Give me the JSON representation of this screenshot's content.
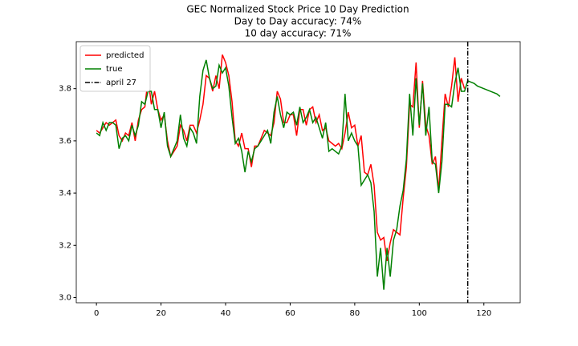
{
  "chart_data": {
    "type": "line",
    "title": "GEC Normalized Stock Price 10 Day Prediction",
    "subtitles": [
      "Day to Day accuracy: 74%",
      "10 day accuracy: 71%"
    ],
    "x": [
      0,
      1,
      2,
      3,
      4,
      5,
      6,
      7,
      8,
      9,
      10,
      11,
      12,
      13,
      14,
      15,
      16,
      17,
      18,
      19,
      20,
      21,
      22,
      23,
      24,
      25,
      26,
      27,
      28,
      29,
      30,
      31,
      32,
      33,
      34,
      35,
      36,
      37,
      38,
      39,
      40,
      41,
      42,
      43,
      44,
      45,
      46,
      47,
      48,
      49,
      50,
      51,
      52,
      53,
      54,
      55,
      56,
      57,
      58,
      59,
      60,
      61,
      62,
      63,
      64,
      65,
      66,
      67,
      68,
      69,
      70,
      71,
      72,
      73,
      74,
      75,
      76,
      77,
      78,
      79,
      80,
      81,
      82,
      83,
      84,
      85,
      86,
      87,
      88,
      89,
      90,
      91,
      92,
      93,
      94,
      95,
      96,
      97,
      98,
      99,
      100,
      101,
      102,
      103,
      104,
      105,
      106,
      107,
      108,
      109,
      110,
      111,
      112,
      113,
      114,
      115,
      116,
      117,
      118,
      119,
      120,
      121,
      122,
      123,
      124,
      125
    ],
    "series": [
      {
        "name": "predicted",
        "color": "#ff0000",
        "values": [
          3.64,
          3.63,
          3.65,
          3.67,
          3.66,
          3.67,
          3.68,
          3.62,
          3.6,
          3.63,
          3.62,
          3.67,
          3.6,
          3.68,
          3.72,
          3.73,
          3.84,
          3.74,
          3.79,
          3.72,
          3.68,
          3.7,
          3.6,
          3.54,
          3.56,
          3.58,
          3.66,
          3.64,
          3.6,
          3.66,
          3.66,
          3.63,
          3.68,
          3.74,
          3.85,
          3.84,
          3.79,
          3.85,
          3.8,
          3.93,
          3.9,
          3.85,
          3.75,
          3.6,
          3.58,
          3.63,
          3.57,
          3.57,
          3.5,
          3.58,
          3.58,
          3.61,
          3.64,
          3.63,
          3.62,
          3.67,
          3.79,
          3.76,
          3.67,
          3.67,
          3.7,
          3.7,
          3.62,
          3.72,
          3.72,
          3.66,
          3.72,
          3.73,
          3.67,
          3.7,
          3.64,
          3.65,
          3.6,
          3.59,
          3.58,
          3.59,
          3.57,
          3.63,
          3.71,
          3.65,
          3.66,
          3.58,
          3.62,
          3.48,
          3.47,
          3.51,
          3.43,
          3.25,
          3.22,
          3.23,
          3.14,
          3.21,
          3.26,
          3.25,
          3.24,
          3.38,
          3.5,
          3.74,
          3.73,
          3.9,
          3.65,
          3.83,
          3.66,
          3.62,
          3.51,
          3.54,
          3.41,
          3.6,
          3.78,
          3.73,
          3.81,
          3.92,
          3.75,
          3.84,
          3.8,
          null,
          null,
          null,
          null,
          null,
          null,
          null,
          null,
          null,
          null,
          null
        ]
      },
      {
        "name": "true",
        "color": "#008000",
        "values": [
          3.63,
          3.62,
          3.67,
          3.64,
          3.67,
          3.67,
          3.66,
          3.57,
          3.61,
          3.62,
          3.6,
          3.66,
          3.62,
          3.66,
          3.75,
          3.74,
          3.79,
          3.79,
          3.72,
          3.72,
          3.65,
          3.71,
          3.58,
          3.54,
          3.57,
          3.6,
          3.7,
          3.61,
          3.58,
          3.65,
          3.63,
          3.59,
          3.77,
          3.87,
          3.91,
          3.84,
          3.8,
          3.81,
          3.89,
          3.86,
          3.88,
          3.81,
          3.69,
          3.59,
          3.61,
          3.56,
          3.48,
          3.56,
          3.52,
          3.57,
          3.58,
          3.6,
          3.62,
          3.64,
          3.59,
          3.71,
          3.77,
          3.7,
          3.65,
          3.71,
          3.7,
          3.71,
          3.66,
          3.73,
          3.67,
          3.69,
          3.72,
          3.67,
          3.69,
          3.65,
          3.61,
          3.67,
          3.56,
          3.57,
          3.56,
          3.55,
          3.58,
          3.78,
          3.6,
          3.63,
          3.6,
          3.58,
          3.43,
          3.45,
          3.47,
          3.44,
          3.33,
          3.08,
          3.19,
          3.03,
          3.19,
          3.08,
          3.22,
          3.26,
          3.35,
          3.41,
          3.53,
          3.78,
          3.62,
          3.84,
          3.66,
          3.82,
          3.62,
          3.73,
          3.52,
          3.51,
          3.4,
          3.52,
          3.74,
          3.74,
          3.73,
          3.82,
          3.88,
          3.79,
          3.79,
          3.83,
          3.825,
          3.82,
          3.81,
          3.805,
          3.8,
          3.795,
          3.79,
          3.785,
          3.78,
          3.77
        ]
      }
    ],
    "vlines": [
      {
        "name": "april 27",
        "x": 115,
        "color": "#000000"
      }
    ],
    "xlim": [
      -6.25,
      131.25
    ],
    "ylim": [
      2.98,
      3.98
    ],
    "xticks": [
      0,
      20,
      40,
      60,
      80,
      100,
      120
    ],
    "yticks": [
      {
        "value": 3,
        "label": "3.0"
      },
      3.2,
      3.4,
      3.6,
      3.8
    ],
    "legend": "upper left"
  }
}
